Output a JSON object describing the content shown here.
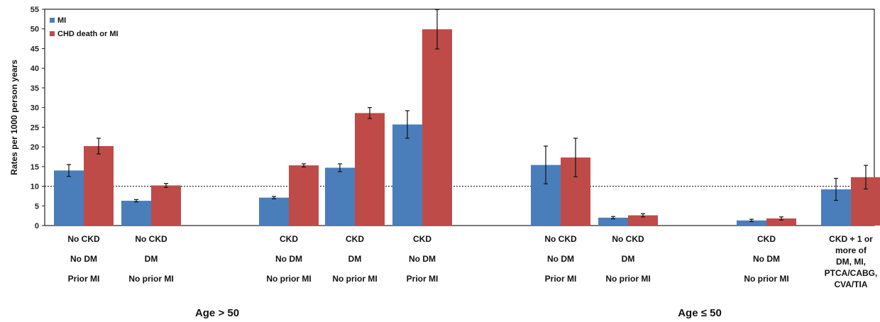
{
  "chart_data": {
    "type": "bar",
    "ylabel": "Rates per 1000 person years",
    "ylim": [
      0,
      55
    ],
    "yticks": [
      0,
      5,
      10,
      15,
      20,
      25,
      30,
      35,
      40,
      45,
      50,
      55
    ],
    "reference_line": 10,
    "legend_position": "top-left",
    "series": [
      {
        "name": "MI",
        "color": "#4a7ebb"
      },
      {
        "name": "CHD death or MI",
        "color": "#be4b48"
      }
    ],
    "categories": [
      {
        "lines": [
          "No CKD",
          "No DM",
          "Prior MI"
        ],
        "values": [
          14.0,
          20.2
        ],
        "errors": [
          1.5,
          2.0
        ]
      },
      {
        "lines": [
          "No CKD",
          "DM",
          "No prior MI"
        ],
        "values": [
          6.3,
          10.2
        ],
        "errors": [
          0.3,
          0.5
        ]
      },
      {
        "lines": [
          "CKD",
          "No DM",
          "No prior MI"
        ],
        "values": [
          7.1,
          15.3
        ],
        "errors": [
          0.3,
          0.4
        ]
      },
      {
        "lines": [
          "CKD",
          "DM",
          "No prior MI"
        ],
        "values": [
          14.7,
          28.6
        ],
        "errors": [
          1.0,
          1.4
        ]
      },
      {
        "lines": [
          "CKD",
          "No DM",
          "Prior MI"
        ],
        "values": [
          25.7,
          49.9
        ],
        "errors": [
          3.5,
          5.0
        ]
      },
      {
        "lines": [
          "No CKD",
          "No DM",
          "Prior MI"
        ],
        "values": [
          15.4,
          17.3
        ],
        "errors": [
          4.8,
          4.9
        ]
      },
      {
        "lines": [
          "No CKD",
          "DM",
          "No prior MI"
        ],
        "values": [
          2.0,
          2.6
        ],
        "errors": [
          0.3,
          0.4
        ]
      },
      {
        "lines": [
          "CKD",
          "No DM",
          "No prior MI"
        ],
        "values": [
          1.3,
          1.8
        ],
        "errors": [
          0.3,
          0.4
        ]
      },
      {
        "lines": [
          "CKD + 1 or",
          "more of",
          "DM, MI,",
          "PTCA/CABG,",
          "CVA/TIA"
        ],
        "values": [
          9.2,
          12.3
        ],
        "errors": [
          2.8,
          3.0
        ]
      }
    ],
    "groups": [
      {
        "label": "Age > 50"
      },
      {
        "label": "Age ≤ 50"
      }
    ]
  }
}
